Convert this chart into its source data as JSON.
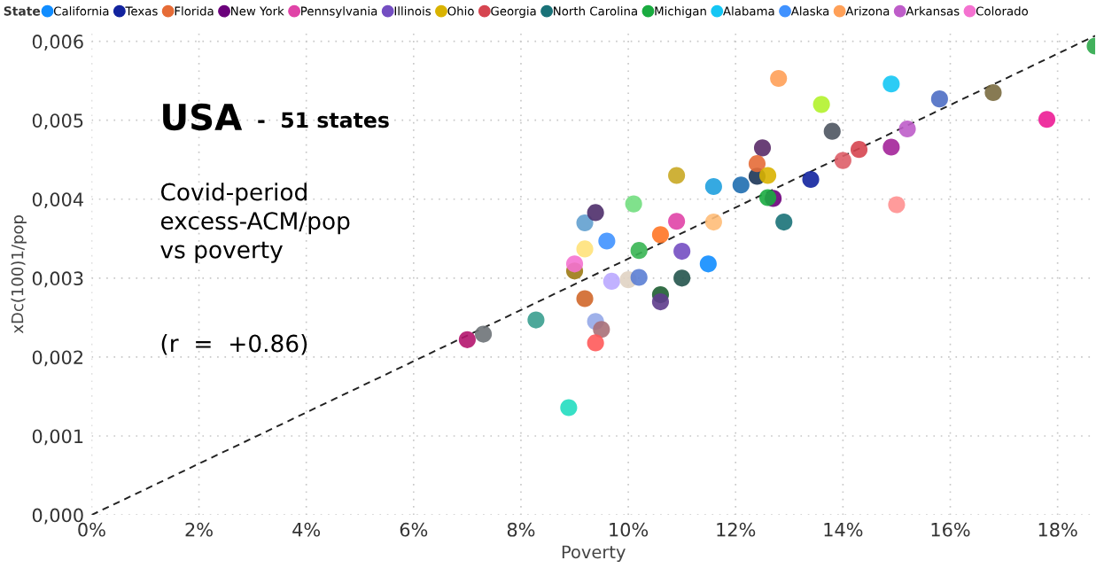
{
  "chart_data": {
    "type": "scatter",
    "xlabel": "Poverty",
    "ylabel": "xDc(100)1/pop",
    "legend_title": "State",
    "xlim": [
      0,
      18.7
    ],
    "ylim": [
      0,
      0.0061
    ],
    "xticks": [
      {
        "value": 0,
        "label": "0%"
      },
      {
        "value": 2,
        "label": "2%"
      },
      {
        "value": 4,
        "label": "4%"
      },
      {
        "value": 6,
        "label": "6%"
      },
      {
        "value": 8,
        "label": "8%"
      },
      {
        "value": 10,
        "label": "10%"
      },
      {
        "value": 12,
        "label": "12%"
      },
      {
        "value": 14,
        "label": "14%"
      },
      {
        "value": 16,
        "label": "16%"
      },
      {
        "value": 18,
        "label": "18%"
      }
    ],
    "yticks": [
      {
        "value": 0,
        "label": "0,000"
      },
      {
        "value": 0.001,
        "label": "0,001"
      },
      {
        "value": 0.002,
        "label": "0,002"
      },
      {
        "value": 0.003,
        "label": "0,003"
      },
      {
        "value": 0.004,
        "label": "0,004"
      },
      {
        "value": 0.005,
        "label": "0,005"
      },
      {
        "value": 0.006,
        "label": "0,006"
      }
    ],
    "grid": true,
    "legend": "top",
    "marker": "circle",
    "annotations": [
      "USA",
      "-  51 states",
      "Covid-period\nexcess-ACM/pop\nvs poverty",
      "(r  =  +0.86)"
    ],
    "series": [
      {
        "type": "line",
        "line_style": "dashed",
        "marker": "none",
        "color": "#222222",
        "x": [
          0,
          18.7
        ],
        "values": [
          0,
          0.00607
        ]
      },
      {
        "name": "California",
        "color": "#118dff",
        "x": [
          11.49
        ],
        "values": [
          0.00318
        ]
      },
      {
        "name": "Texas",
        "color": "#12239e",
        "x": [
          13.4
        ],
        "values": [
          0.00425
        ]
      },
      {
        "name": "Florida",
        "color": "#e66c37",
        "x": [
          12.4
        ],
        "values": [
          0.00445
        ]
      },
      {
        "name": "New York",
        "color": "#6b007b",
        "x": [
          12.7
        ],
        "values": [
          0.00401
        ]
      },
      {
        "name": "Pennsylvania",
        "color": "#e044a7",
        "x": [
          10.9
        ],
        "values": [
          0.00372
        ]
      },
      {
        "name": "Illinois",
        "color": "#744ec2",
        "x": [
          11.0
        ],
        "values": [
          0.00334
        ]
      },
      {
        "name": "Ohio",
        "color": "#d9b300",
        "x": [
          12.6
        ],
        "values": [
          0.0043
        ]
      },
      {
        "name": "Georgia",
        "color": "#d64550",
        "x": [
          14.3
        ],
        "values": [
          0.00463
        ]
      },
      {
        "name": "North Carolina",
        "color": "#197278",
        "x": [
          12.9
        ],
        "values": [
          0.00371
        ]
      },
      {
        "name": "Michigan",
        "color": "#1aab40",
        "x": [
          12.6
        ],
        "values": [
          0.00402
        ]
      },
      {
        "name": "Alabama",
        "color": "#15c6f4",
        "x": [
          14.9
        ],
        "values": [
          0.00546
        ]
      },
      {
        "name": "Alaska",
        "color": "#4092ff",
        "x": [
          9.6
        ],
        "values": [
          0.00347
        ]
      },
      {
        "name": "Arizona",
        "color": "#ffa058",
        "x": [
          12.8
        ],
        "values": [
          0.00553
        ]
      },
      {
        "name": "Arkansas",
        "color": "#be5dc9",
        "x": [
          15.2
        ],
        "values": [
          0.00489
        ]
      },
      {
        "name": "Colorado",
        "color": "#f472d0",
        "x": [
          9.0
        ],
        "values": [
          0.00318
        ]
      },
      {
        "x": [
          7.0,
          7.3,
          8.28,
          8.89,
          9.0,
          9.19,
          9.39,
          9.5,
          9.39,
          9.19,
          9.19,
          9.39,
          9.69,
          10.0,
          10.2,
          10.1,
          10.2,
          10.6,
          10.9,
          10.6,
          10.6,
          11.0,
          11.59,
          11.59,
          12.1,
          12.5,
          12.4,
          13.6,
          13.8,
          14.0,
          14.9,
          15.0,
          15.8,
          16.8,
          17.8,
          18.7
        ],
        "values": [
          0.00222,
          0.00229,
          0.00247,
          0.00136,
          0.00309,
          0.00274,
          0.00245,
          0.00235,
          0.00218,
          0.00337,
          0.0037,
          0.00383,
          0.00296,
          0.00298,
          0.00301,
          0.00394,
          0.00335,
          0.00355,
          0.0043,
          0.00279,
          0.0027,
          0.003,
          0.00416,
          0.00371,
          0.00418,
          0.00465,
          0.00429,
          0.0052,
          0.00486,
          0.00449,
          0.00466,
          0.00393,
          0.00527,
          0.00535,
          0.00501,
          0.00594
        ],
        "colors": [
          "#b4156e",
          "#6e7378",
          "#3a9e8f",
          "#22ddc0",
          "#9c7a14",
          "#d0672a",
          "#95a8e8",
          "#a87078",
          "#ff5a5a",
          "#ffe27a",
          "#62a0cf",
          "#4e2d6a",
          "#baa8ff",
          "#e0d3c3",
          "#5b7ed4",
          "#72de80",
          "#38b553",
          "#ff7626",
          "#c9a824",
          "#1e5e32",
          "#5e3c8c",
          "#24544c",
          "#1fa0de",
          "#ffbc78",
          "#1f6eb0",
          "#5a2b68",
          "#1c3557",
          "#b3f22c",
          "#4e5561",
          "#de5e68",
          "#a32399",
          "#ff9090",
          "#4e6ec4",
          "#7a6b40",
          "#ec1c95",
          "#2ea84a"
        ]
      }
    ]
  }
}
